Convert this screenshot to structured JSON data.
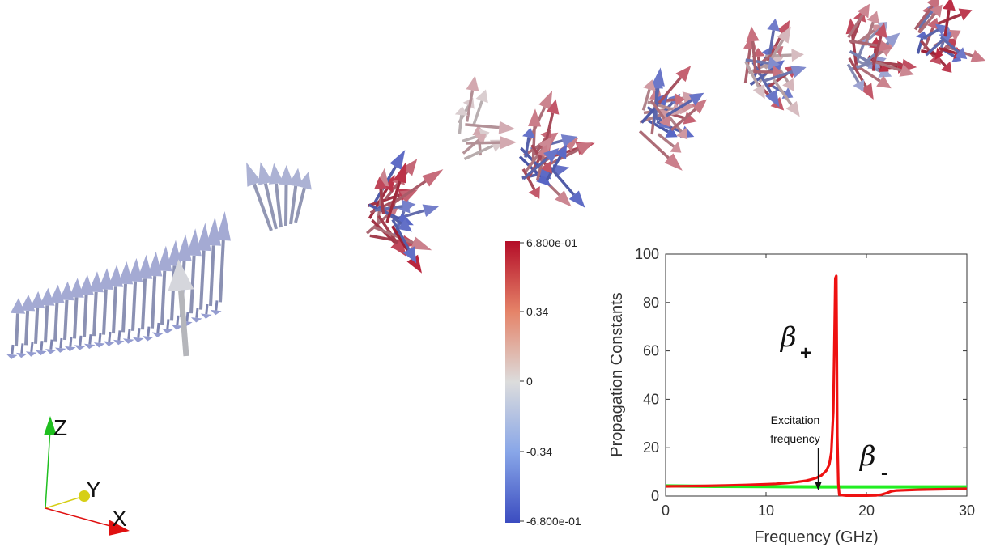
{
  "colorbar": {
    "max_label": "6.800e-01",
    "mid_high_label": "0.34",
    "zero_label": "0",
    "mid_low_label": "-0.34",
    "min_label": "-6.800e-01",
    "colors": {
      "high": "#b40d28",
      "mid": "#dddddd",
      "low": "#3b4cc0"
    }
  },
  "triad": {
    "z_label": "Z",
    "y_label": "Y",
    "x_label": "X",
    "colors": {
      "z": "#1fbf1f",
      "y": "#d6cf17",
      "x": "#e01010"
    }
  },
  "chart_data": {
    "type": "line",
    "xlabel": "Frequency (GHz)",
    "ylabel": "Propagation Constants",
    "xlim": [
      0,
      30
    ],
    "ylim": [
      0,
      100
    ],
    "xticks": [
      "0",
      "10",
      "20",
      "30"
    ],
    "yticks": [
      "0",
      "20",
      "40",
      "60",
      "80",
      "100"
    ],
    "series": [
      {
        "name_main": "β",
        "name_sub": "+",
        "color": "#ee1111",
        "x": [
          0,
          2,
          4,
          6,
          8,
          10,
          11,
          12,
          13,
          14,
          14.5,
          15,
          15.5,
          16,
          16.3,
          16.5,
          16.7,
          16.8,
          16.9,
          17.0,
          17.05,
          17.1,
          17.2,
          17.3,
          18,
          20,
          21,
          21.5,
          22,
          22.5,
          23,
          25,
          27,
          30
        ],
        "values": [
          4,
          4.1,
          4.2,
          4.4,
          4.6,
          4.9,
          5.1,
          5.4,
          5.8,
          6.4,
          6.9,
          7.5,
          8.5,
          10.5,
          13,
          18,
          35,
          60,
          90,
          91,
          60,
          25,
          5,
          0.5,
          0.2,
          0.2,
          0.3,
          0.6,
          1.2,
          2.0,
          2.3,
          2.6,
          2.8,
          3.0
        ]
      },
      {
        "name_main": "β",
        "name_sub": "-",
        "color": "#22ee22",
        "x": [
          0,
          5,
          10,
          15,
          20,
          25,
          30
        ],
        "values": [
          4.2,
          4.0,
          3.9,
          3.8,
          3.8,
          3.8,
          3.8
        ]
      }
    ],
    "annotations": {
      "excitation_line1": "Excitation",
      "excitation_line2": "frequency",
      "excitation_x": 15.2
    }
  }
}
